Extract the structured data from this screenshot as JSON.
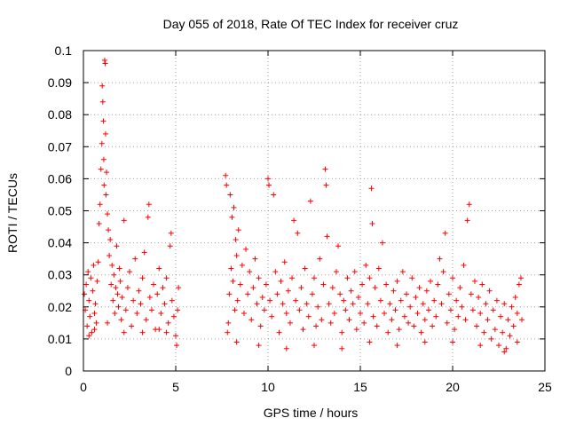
{
  "chart_data": {
    "type": "scatter",
    "title": "Day 055 of 2018, Rate Of TEC Index for receiver cruz",
    "xlabel": "GPS time / hours",
    "ylabel": "ROTI / TECUs",
    "xlim": [
      0,
      25
    ],
    "ylim": [
      0,
      0.1
    ],
    "x_ticks": [
      0,
      5,
      10,
      15,
      20,
      25
    ],
    "y_ticks": [
      0,
      0.01,
      0.02,
      0.03,
      0.04,
      0.05,
      0.06,
      0.07,
      0.08,
      0.09,
      0.1
    ],
    "x_tick_labels": [
      "0",
      "5",
      "10",
      "15",
      "20",
      "25"
    ],
    "y_tick_labels": [
      "0",
      "0.01",
      "0.02",
      "0.03",
      "0.04",
      "0.05",
      "0.06",
      "0.07",
      "0.08",
      "0.09",
      "0.1"
    ],
    "grid": true,
    "marker": "+",
    "series_color": "#ff0000",
    "data_gap_hours": [
      5.2,
      7.6
    ],
    "points": [
      [
        0.05,
        0.024
      ],
      [
        0.1,
        0.019
      ],
      [
        0.15,
        0.027
      ],
      [
        0.2,
        0.014
      ],
      [
        0.25,
        0.031
      ],
      [
        0.3,
        0.022
      ],
      [
        0.35,
        0.017
      ],
      [
        0.4,
        0.029
      ],
      [
        0.45,
        0.012
      ],
      [
        0.5,
        0.025
      ],
      [
        0.55,
        0.033
      ],
      [
        0.6,
        0.018
      ],
      [
        0.65,
        0.021
      ],
      [
        0.7,
        0.015
      ],
      [
        0.75,
        0.028
      ],
      [
        0.8,
        0.034
      ],
      [
        0.85,
        0.046
      ],
      [
        0.9,
        0.052
      ],
      [
        0.95,
        0.063
      ],
      [
        1.0,
        0.071
      ],
      [
        1.02,
        0.089
      ],
      [
        1.05,
        0.084
      ],
      [
        1.08,
        0.078
      ],
      [
        1.1,
        0.066
      ],
      [
        1.12,
        0.058
      ],
      [
        1.15,
        0.097
      ],
      [
        1.18,
        0.096
      ],
      [
        1.2,
        0.074
      ],
      [
        1.22,
        0.055
      ],
      [
        1.25,
        0.062
      ],
      [
        1.3,
        0.049
      ],
      [
        1.35,
        0.044
      ],
      [
        1.4,
        0.036
      ],
      [
        1.45,
        0.041
      ],
      [
        1.5,
        0.027
      ],
      [
        1.55,
        0.033
      ],
      [
        1.6,
        0.022
      ],
      [
        1.65,
        0.03
      ],
      [
        1.7,
        0.018
      ],
      [
        1.75,
        0.026
      ],
      [
        1.8,
        0.039
      ],
      [
        1.85,
        0.024
      ],
      [
        1.9,
        0.02
      ],
      [
        1.95,
        0.032
      ],
      [
        2.0,
        0.028
      ],
      [
        2.05,
        0.016
      ],
      [
        2.1,
        0.023
      ],
      [
        2.2,
        0.047
      ],
      [
        2.3,
        0.019
      ],
      [
        2.4,
        0.026
      ],
      [
        2.5,
        0.031
      ],
      [
        2.6,
        0.014
      ],
      [
        2.7,
        0.022
      ],
      [
        2.8,
        0.035
      ],
      [
        2.9,
        0.018
      ],
      [
        3.0,
        0.025
      ],
      [
        3.1,
        0.021
      ],
      [
        3.2,
        0.029
      ],
      [
        3.3,
        0.037
      ],
      [
        3.4,
        0.016
      ],
      [
        3.5,
        0.048
      ],
      [
        3.55,
        0.052
      ],
      [
        3.6,
        0.023
      ],
      [
        3.7,
        0.019
      ],
      [
        3.8,
        0.027
      ],
      [
        3.9,
        0.013
      ],
      [
        4.0,
        0.024
      ],
      [
        4.1,
        0.032
      ],
      [
        4.2,
        0.018
      ],
      [
        4.3,
        0.026
      ],
      [
        4.4,
        0.021
      ],
      [
        4.5,
        0.029
      ],
      [
        4.6,
        0.015
      ],
      [
        4.7,
        0.039
      ],
      [
        4.75,
        0.043
      ],
      [
        4.8,
        0.022
      ],
      [
        4.9,
        0.017
      ],
      [
        5.0,
        0.011
      ],
      [
        5.05,
        0.008
      ],
      [
        5.1,
        0.019
      ],
      [
        5.15,
        0.026
      ],
      [
        0.3,
        0.011
      ],
      [
        0.6,
        0.013
      ],
      [
        1.3,
        0.015
      ],
      [
        2.2,
        0.012
      ],
      [
        3.2,
        0.012
      ],
      [
        4.1,
        0.013
      ],
      [
        4.5,
        0.012
      ],
      [
        7.7,
        0.061
      ],
      [
        7.75,
        0.058
      ],
      [
        7.8,
        0.012
      ],
      [
        7.85,
        0.015
      ],
      [
        7.9,
        0.024
      ],
      [
        7.95,
        0.055
      ],
      [
        8.0,
        0.032
      ],
      [
        8.05,
        0.048
      ],
      [
        8.1,
        0.028
      ],
      [
        8.15,
        0.051
      ],
      [
        8.2,
        0.019
      ],
      [
        8.25,
        0.041
      ],
      [
        8.3,
        0.036
      ],
      [
        8.35,
        0.022
      ],
      [
        8.4,
        0.044
      ],
      [
        8.5,
        0.027
      ],
      [
        8.6,
        0.033
      ],
      [
        8.7,
        0.018
      ],
      [
        8.8,
        0.038
      ],
      [
        8.9,
        0.024
      ],
      [
        9.0,
        0.031
      ],
      [
        9.1,
        0.016
      ],
      [
        9.2,
        0.026
      ],
      [
        9.3,
        0.035
      ],
      [
        9.4,
        0.021
      ],
      [
        9.5,
        0.029
      ],
      [
        9.6,
        0.014
      ],
      [
        9.7,
        0.023
      ],
      [
        9.8,
        0.019
      ],
      [
        9.9,
        0.027
      ],
      [
        10.0,
        0.06
      ],
      [
        10.05,
        0.058
      ],
      [
        10.1,
        0.022
      ],
      [
        10.2,
        0.017
      ],
      [
        10.3,
        0.055
      ],
      [
        10.4,
        0.031
      ],
      [
        10.5,
        0.024
      ],
      [
        10.6,
        0.012
      ],
      [
        10.7,
        0.028
      ],
      [
        10.8,
        0.021
      ],
      [
        10.9,
        0.034
      ],
      [
        11.0,
        0.018
      ],
      [
        11.1,
        0.025
      ],
      [
        11.2,
        0.015
      ],
      [
        11.3,
        0.029
      ],
      [
        11.4,
        0.047
      ],
      [
        11.5,
        0.022
      ],
      [
        11.6,
        0.043
      ],
      [
        11.7,
        0.019
      ],
      [
        11.8,
        0.026
      ],
      [
        11.9,
        0.013
      ],
      [
        12.0,
        0.032
      ],
      [
        12.1,
        0.021
      ],
      [
        12.2,
        0.017
      ],
      [
        12.3,
        0.053
      ],
      [
        12.4,
        0.024
      ],
      [
        12.5,
        0.029
      ],
      [
        12.6,
        0.014
      ],
      [
        12.7,
        0.02
      ],
      [
        12.8,
        0.035
      ],
      [
        12.9,
        0.016
      ],
      [
        13.0,
        0.027
      ],
      [
        13.1,
        0.063
      ],
      [
        13.15,
        0.058
      ],
      [
        13.2,
        0.042
      ],
      [
        13.3,
        0.021
      ],
      [
        13.4,
        0.015
      ],
      [
        13.5,
        0.026
      ],
      [
        13.6,
        0.018
      ],
      [
        13.7,
        0.031
      ],
      [
        13.8,
        0.039
      ],
      [
        13.9,
        0.024
      ],
      [
        14.0,
        0.012
      ],
      [
        14.1,
        0.022
      ],
      [
        14.2,
        0.019
      ],
      [
        14.3,
        0.029
      ],
      [
        14.4,
        0.016
      ],
      [
        14.5,
        0.025
      ],
      [
        14.6,
        0.021
      ],
      [
        14.7,
        0.031
      ],
      [
        14.8,
        0.013
      ],
      [
        14.9,
        0.023
      ],
      [
        15.0,
        0.018
      ],
      [
        15.1,
        0.027
      ],
      [
        15.2,
        0.015
      ],
      [
        15.3,
        0.033
      ],
      [
        15.4,
        0.021
      ],
      [
        15.5,
        0.029
      ],
      [
        15.6,
        0.057
      ],
      [
        15.65,
        0.046
      ],
      [
        15.7,
        0.017
      ],
      [
        15.8,
        0.026
      ],
      [
        15.9,
        0.014
      ],
      [
        16.0,
        0.032
      ],
      [
        16.1,
        0.022
      ],
      [
        16.2,
        0.04
      ],
      [
        16.3,
        0.018
      ],
      [
        16.4,
        0.027
      ],
      [
        16.5,
        0.012
      ],
      [
        16.6,
        0.021
      ],
      [
        16.7,
        0.016
      ],
      [
        16.8,
        0.025
      ],
      [
        16.9,
        0.019
      ],
      [
        17.0,
        0.028
      ],
      [
        17.1,
        0.013
      ],
      [
        17.2,
        0.022
      ],
      [
        17.3,
        0.031
      ],
      [
        17.4,
        0.017
      ],
      [
        17.5,
        0.024
      ],
      [
        17.6,
        0.015
      ],
      [
        17.7,
        0.02
      ],
      [
        17.8,
        0.029
      ],
      [
        17.9,
        0.014
      ],
      [
        18.0,
        0.023
      ],
      [
        18.1,
        0.018
      ],
      [
        18.2,
        0.026
      ],
      [
        18.3,
        0.012
      ],
      [
        18.4,
        0.021
      ],
      [
        18.5,
        0.016
      ],
      [
        18.6,
        0.025
      ],
      [
        18.7,
        0.019
      ],
      [
        18.8,
        0.028
      ],
      [
        18.9,
        0.014
      ],
      [
        19.0,
        0.022
      ],
      [
        19.1,
        0.017
      ],
      [
        19.2,
        0.027
      ],
      [
        19.3,
        0.035
      ],
      [
        19.4,
        0.021
      ],
      [
        19.5,
        0.031
      ],
      [
        19.6,
        0.043
      ],
      [
        19.7,
        0.015
      ],
      [
        19.8,
        0.024
      ],
      [
        19.9,
        0.019
      ],
      [
        20.0,
        0.029
      ],
      [
        20.1,
        0.013
      ],
      [
        20.2,
        0.022
      ],
      [
        20.3,
        0.017
      ],
      [
        20.4,
        0.026
      ],
      [
        20.5,
        0.02
      ],
      [
        20.6,
        0.033
      ],
      [
        20.7,
        0.016
      ],
      [
        20.8,
        0.047
      ],
      [
        20.9,
        0.052
      ],
      [
        21.0,
        0.024
      ],
      [
        21.1,
        0.019
      ],
      [
        21.2,
        0.028
      ],
      [
        21.3,
        0.014
      ],
      [
        21.4,
        0.023
      ],
      [
        21.5,
        0.018
      ],
      [
        21.6,
        0.027
      ],
      [
        21.7,
        0.012
      ],
      [
        21.8,
        0.021
      ],
      [
        21.9,
        0.016
      ],
      [
        22.0,
        0.025
      ],
      [
        22.1,
        0.01
      ],
      [
        22.2,
        0.019
      ],
      [
        22.3,
        0.013
      ],
      [
        22.4,
        0.022
      ],
      [
        22.5,
        0.008
      ],
      [
        22.6,
        0.017
      ],
      [
        22.7,
        0.012
      ],
      [
        22.8,
        0.021
      ],
      [
        22.9,
        0.007
      ],
      [
        23.0,
        0.016
      ],
      [
        23.1,
        0.011
      ],
      [
        23.2,
        0.02
      ],
      [
        23.3,
        0.014
      ],
      [
        23.4,
        0.023
      ],
      [
        23.5,
        0.018
      ],
      [
        23.6,
        0.027
      ],
      [
        23.7,
        0.029
      ],
      [
        23.75,
        0.016
      ],
      [
        8.3,
        0.009
      ],
      [
        9.5,
        0.008
      ],
      [
        11.0,
        0.007
      ],
      [
        12.5,
        0.008
      ],
      [
        14.0,
        0.007
      ],
      [
        15.5,
        0.009
      ],
      [
        17.0,
        0.008
      ],
      [
        18.5,
        0.009
      ],
      [
        20.0,
        0.009
      ],
      [
        21.5,
        0.008
      ],
      [
        22.8,
        0.006
      ],
      [
        23.5,
        0.009
      ]
    ]
  }
}
